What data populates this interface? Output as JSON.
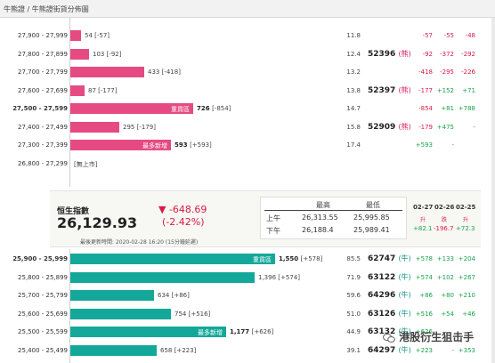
{
  "header": {
    "title": "牛熊證 / 牛熊證街貨分佈圖"
  },
  "upper_rows": [
    {
      "range": "27,900 - 27,999",
      "value": "54",
      "diff": "[-57]",
      "pct": "11.8",
      "code": "",
      "tag": "",
      "changes": [
        "-57",
        "-55",
        "-48"
      ],
      "colors": [
        "red",
        "red",
        "red"
      ],
      "fill": 0.05
    },
    {
      "range": "27,800 - 27,899",
      "value": "103",
      "diff": "[-92]",
      "pct": "12.4",
      "code": "52396",
      "tag": "(熊)",
      "changes": [
        "-92",
        "-372",
        "-292"
      ],
      "colors": [
        "red",
        "red",
        "red"
      ],
      "fill": 0.09
    },
    {
      "range": "27,700 - 27,799",
      "value": "433",
      "diff": "[-418]",
      "pct": "13.2",
      "code": "",
      "tag": "",
      "changes": [
        "-418",
        "-295",
        "-226"
      ],
      "colors": [
        "red",
        "red",
        "red"
      ],
      "fill": 0.36
    },
    {
      "range": "27,600 - 27,699",
      "value": "87",
      "diff": "[-177]",
      "pct": "13.8",
      "code": "52397",
      "tag": "(熊)",
      "changes": [
        "-177",
        "+152",
        "+71"
      ],
      "colors": [
        "red",
        "green",
        "green"
      ],
      "fill": 0.07
    },
    {
      "range": "27,500 - 27,599",
      "value": "726",
      "diff": "[-854]",
      "pct": "14.7",
      "code": "",
      "tag": "",
      "changes": [
        "-854",
        "+81",
        "+788"
      ],
      "colors": [
        "red",
        "green",
        "green"
      ],
      "fill": 0.6,
      "bold": true,
      "label": "重貨區"
    },
    {
      "range": "27,400 - 27,499",
      "value": "295",
      "diff": "[-179]",
      "pct": "15.8",
      "code": "52909",
      "tag": "(熊)",
      "changes": [
        "-179",
        "+475",
        "-"
      ],
      "colors": [
        "red",
        "green",
        "green"
      ],
      "fill": 0.24
    },
    {
      "range": "27,300 - 27,399",
      "value": "593",
      "diff": "[+593]",
      "pct": "17.4",
      "code": "",
      "tag": "",
      "changes": [
        "+593",
        "-",
        ""
      ],
      "colors": [
        "green",
        "green",
        "green"
      ],
      "fill": 0.49,
      "label": "最多新增"
    },
    {
      "range": "26,800 - 27,299",
      "value": "",
      "diff": "[無上市]",
      "pct": "",
      "code": "",
      "tag": "",
      "changes": [
        "",
        "",
        ""
      ],
      "colors": [
        "green",
        "green",
        "green"
      ],
      "fill": 0
    }
  ],
  "index_panel": {
    "label": "恒生指數",
    "value": "26,129.93",
    "change": "▼ -648.69",
    "change_pct": "(-2.42%)",
    "updated": "最後更新時間: 2020-02-28 16:20 (15分鐘延遲)",
    "hl_headers": [
      "最高",
      "最低"
    ],
    "sessions": [
      {
        "name": "上午",
        "high": "26,313.55",
        "low": "25,995.85"
      },
      {
        "name": "下午",
        "high": "26,188.4",
        "low": "25,989.41"
      }
    ],
    "dates": [
      "02-27",
      "02-26",
      "02-25"
    ],
    "updown": [
      "升",
      "跌",
      "升"
    ],
    "date_changes": [
      "+82.1",
      "-196.7",
      "+72.3"
    ],
    "date_colors": [
      "green",
      "red",
      "green"
    ]
  },
  "lower_rows": [
    {
      "range": "25,900 - 25,999",
      "value": "1,550",
      "diff": "[+578]",
      "pct": "85.5",
      "code": "62747",
      "tag": "(牛)",
      "changes": [
        "+578",
        "+133",
        "+204"
      ],
      "colors": [
        "green",
        "green",
        "green"
      ],
      "fill": 1.0,
      "bold": true,
      "label": "重貨區"
    },
    {
      "range": "25,800 - 25,899",
      "value": "1,396",
      "diff": "[+574]",
      "pct": "71.9",
      "code": "63122",
      "tag": "(牛)",
      "changes": [
        "+574",
        "+102",
        "+267"
      ],
      "colors": [
        "green",
        "green",
        "green"
      ],
      "fill": 0.9
    },
    {
      "range": "25,700 - 25,799",
      "value": "634",
      "diff": "[+86]",
      "pct": "59.6",
      "code": "64296",
      "tag": "(牛)",
      "changes": [
        "+86",
        "+80",
        "+210"
      ],
      "colors": [
        "green",
        "green",
        "green"
      ],
      "fill": 0.41
    },
    {
      "range": "25,600 - 25,699",
      "value": "754",
      "diff": "[+516]",
      "pct": "51.0",
      "code": "63126",
      "tag": "(牛)",
      "changes": [
        "+516",
        "+54",
        "+46"
      ],
      "colors": [
        "green",
        "green",
        "green"
      ],
      "fill": 0.49
    },
    {
      "range": "25,500 - 25,599",
      "value": "1,177",
      "diff": "[+626]",
      "pct": "44.9",
      "code": "63132",
      "tag": "(牛)",
      "changes": [
        "+626",
        "",
        ""
      ],
      "colors": [
        "green",
        "green",
        "green"
      ],
      "fill": 0.76,
      "label": "最多新增"
    },
    {
      "range": "25,400 - 25,499",
      "value": "658",
      "diff": "[+223]",
      "pct": "39.1",
      "code": "64297",
      "tag": "(牛)",
      "changes": [
        "+223",
        "-",
        "+353"
      ],
      "colors": [
        "green",
        "green",
        "green"
      ],
      "fill": 0.42
    }
  ],
  "watermark": {
    "text": "港股衍生狙击手"
  },
  "colors": {
    "bear_bar": "#e64a82",
    "bull_bar": "#14a89a",
    "up": "#1aa34a",
    "down": "#d81b45"
  }
}
